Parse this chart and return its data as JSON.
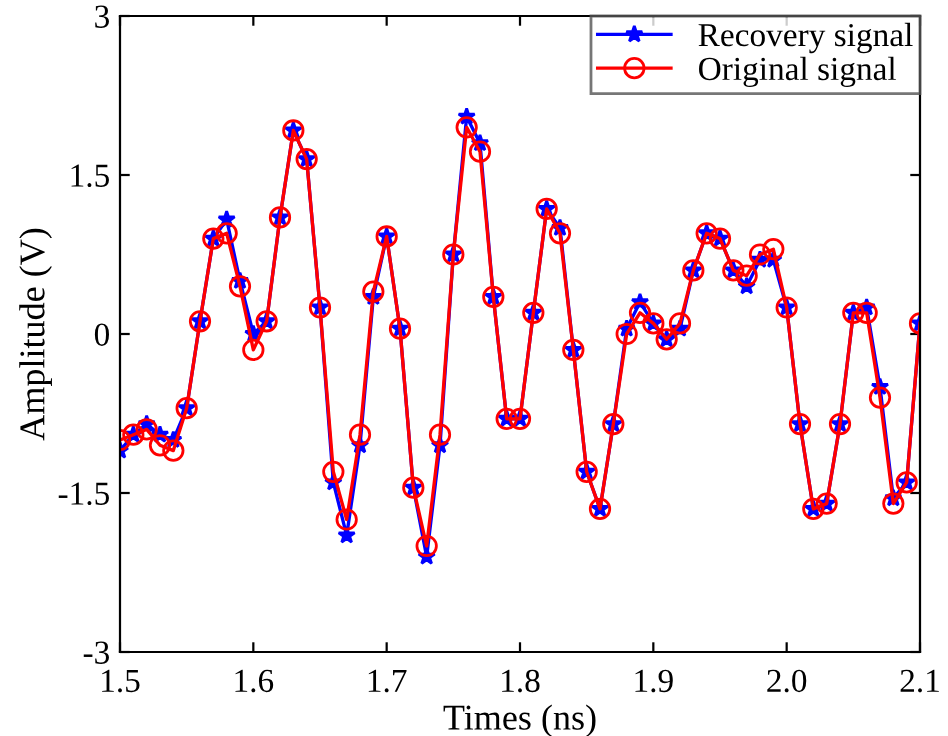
{
  "chart_data": {
    "type": "line",
    "xlabel": "Times (ns)",
    "ylabel": "Amplitude (V)",
    "x": [
      1.5,
      1.51,
      1.52,
      1.53,
      1.54,
      1.55,
      1.56,
      1.57,
      1.58,
      1.59,
      1.6,
      1.61,
      1.62,
      1.63,
      1.64,
      1.65,
      1.66,
      1.67,
      1.68,
      1.69,
      1.7,
      1.71,
      1.72,
      1.73,
      1.74,
      1.75,
      1.76,
      1.77,
      1.78,
      1.79,
      1.8,
      1.81,
      1.82,
      1.83,
      1.84,
      1.85,
      1.86,
      1.87,
      1.88,
      1.89,
      1.9,
      1.91,
      1.92,
      1.93,
      1.94,
      1.95,
      1.96,
      1.97,
      1.98,
      1.99,
      2.0,
      2.01,
      2.02,
      2.03,
      2.04,
      2.05,
      2.06,
      2.07,
      2.08,
      2.09,
      2.1
    ],
    "series": [
      {
        "name": "Recovery signal",
        "color": "#0000ff",
        "marker": "star",
        "values": [
          -1.1,
          -0.95,
          -0.85,
          -0.95,
          -1.0,
          -0.7,
          0.12,
          0.9,
          1.08,
          0.5,
          0.0,
          0.12,
          1.1,
          1.92,
          1.65,
          0.25,
          -1.4,
          -1.9,
          -1.05,
          0.35,
          0.92,
          0.05,
          -1.45,
          -2.1,
          -1.05,
          0.75,
          2.05,
          1.8,
          0.35,
          -0.8,
          -0.8,
          0.2,
          1.18,
          1.0,
          -0.15,
          -1.3,
          -1.65,
          -0.85,
          0.05,
          0.3,
          0.1,
          -0.05,
          0.05,
          0.6,
          0.95,
          0.9,
          0.6,
          0.45,
          0.7,
          0.7,
          0.25,
          -0.85,
          -1.65,
          -1.6,
          -0.85,
          0.2,
          0.25,
          -0.5,
          -1.55,
          -1.4,
          0.1
        ]
      },
      {
        "name": "Original signal",
        "color": "#ff0000",
        "marker": "circle",
        "values": [
          -1.0,
          -0.95,
          -0.9,
          -1.05,
          -1.1,
          -0.7,
          0.12,
          0.9,
          0.95,
          0.45,
          -0.15,
          0.12,
          1.1,
          1.92,
          1.65,
          0.25,
          -1.3,
          -1.75,
          -0.95,
          0.4,
          0.92,
          0.05,
          -1.45,
          -2.0,
          -0.95,
          0.75,
          1.95,
          1.72,
          0.35,
          -0.8,
          -0.8,
          0.2,
          1.18,
          0.95,
          -0.15,
          -1.3,
          -1.65,
          -0.85,
          0.0,
          0.2,
          0.1,
          -0.05,
          0.1,
          0.6,
          0.95,
          0.9,
          0.6,
          0.55,
          0.75,
          0.8,
          0.25,
          -0.85,
          -1.65,
          -1.6,
          -0.85,
          0.2,
          0.2,
          -0.6,
          -1.6,
          -1.4,
          0.1
        ]
      }
    ],
    "xlim": [
      1.5,
      2.1
    ],
    "xticks": [
      1.5,
      1.6,
      1.7,
      1.8,
      1.9,
      {
        "value": 2.0,
        "label": "2.0"
      },
      2.1
    ],
    "ylim": [
      -3,
      3
    ],
    "yticks": [
      -3,
      -1.5,
      0,
      1.5,
      3
    ],
    "grid": false,
    "legend": "top right",
    "line_style": "solid"
  }
}
